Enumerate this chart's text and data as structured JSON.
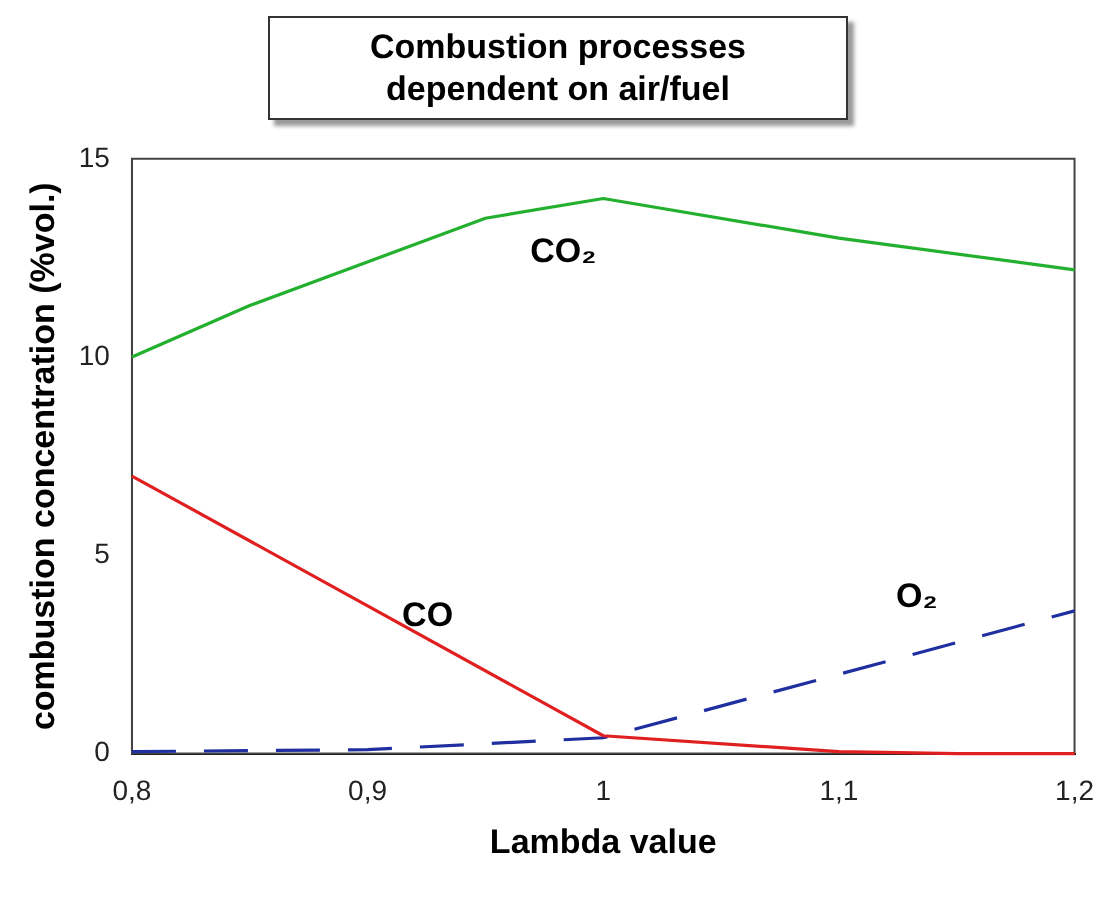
{
  "chart_data": {
    "type": "line",
    "title": "Combustion processes dependent on air/fuel",
    "xlabel": "Lambda value",
    "ylabel": "combustion concentration (%vol.)",
    "xlim": [
      0.8,
      1.2
    ],
    "xticks": [
      {
        "value": 0.8,
        "label": "0,8"
      },
      {
        "value": 0.9,
        "label": "0,9"
      },
      {
        "value": 1,
        "label": "1"
      },
      {
        "value": 1.1,
        "label": "1,1"
      },
      {
        "value": 1.2,
        "label": "1,2"
      }
    ],
    "ylim": [
      0,
      15
    ],
    "yticks": [
      0,
      5,
      10,
      15
    ],
    "grid": false,
    "legend": false,
    "marker": "none",
    "series": [
      {
        "name": "CO₂",
        "color": "#22b02e",
        "x": [
          0.8,
          0.85,
          0.95,
          1.0,
          1.1,
          1.2
        ],
        "values": [
          10,
          11.3,
          13.5,
          14,
          13,
          12.2
        ],
        "line_style": "solid"
      },
      {
        "name": "CO",
        "color": "#e02020",
        "x": [
          0.8,
          1.0,
          1.1,
          1.15,
          1.2
        ],
        "values": [
          7,
          0.45,
          0.05,
          0,
          0
        ],
        "line_style": "solid"
      },
      {
        "name": "O₂",
        "color": "#1f2fa0",
        "x": [
          0.8,
          0.9,
          1.0,
          1.1,
          1.2
        ],
        "values": [
          0.05,
          0.1,
          0.4,
          2,
          3.6
        ],
        "line_style": "dashed"
      }
    ]
  }
}
